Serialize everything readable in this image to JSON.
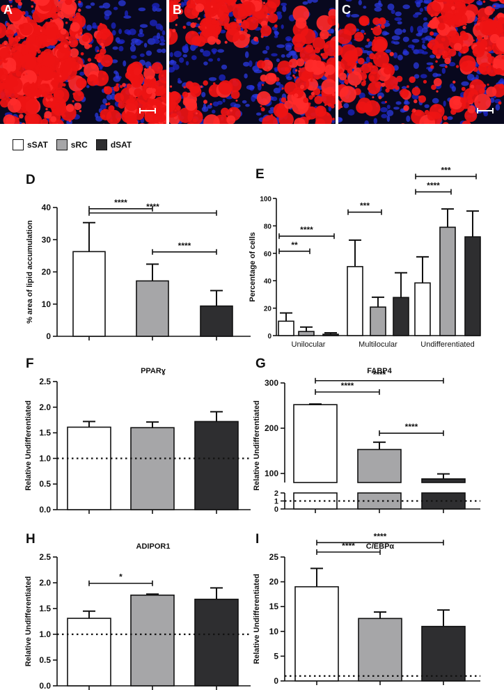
{
  "panels": {
    "A": "A",
    "B": "B",
    "C": "C",
    "D": "D",
    "E": "E",
    "F": "F",
    "G": "G",
    "H": "H",
    "I": "I"
  },
  "legend": [
    {
      "label": "sSAT",
      "color": "#ffffff"
    },
    {
      "label": "sRC",
      "color": "#a6a6a8"
    },
    {
      "label": "dSAT",
      "color": "#2e2e30"
    }
  ],
  "chart_data": [
    {
      "id": "D",
      "type": "bar",
      "categories": [
        "sSAT",
        "sRC",
        "dSAT"
      ],
      "values": [
        26.3,
        17.2,
        9.4
      ],
      "errors": [
        9.0,
        5.2,
        4.8
      ],
      "ylabel": "% area of lipid accumulation",
      "ylim": [
        0,
        40
      ],
      "yticks": [
        "0",
        "10",
        "20",
        "30",
        "40"
      ],
      "significance": [
        {
          "from": 0,
          "to": 2,
          "label": "****",
          "y": 38.3
        },
        {
          "from": 0,
          "to": 1,
          "label": "****",
          "y": 39.6
        },
        {
          "from": 1,
          "to": 2,
          "label": "****",
          "y": 26.2
        }
      ]
    },
    {
      "id": "E",
      "type": "bar",
      "categories": [
        "Unilocular",
        "Multilocular",
        "Undifferentiated"
      ],
      "series": [
        {
          "name": "sSAT",
          "values": [
            10.5,
            50.3,
            38.4
          ],
          "errors": [
            6.0,
            19.3,
            19.0
          ]
        },
        {
          "name": "sRC",
          "values": [
            3.0,
            20.8,
            79.0
          ],
          "errors": [
            3.2,
            7.2,
            13.3
          ]
        },
        {
          "name": "dSAT",
          "values": [
            1.0,
            27.8,
            72.0
          ],
          "errors": [
            1.0,
            18.0,
            18.8
          ]
        }
      ],
      "ylabel": "Percentage of cells",
      "ylim": [
        0,
        100
      ],
      "yticks": [
        "0",
        "20",
        "40",
        "60",
        "80",
        "100"
      ],
      "significance": [
        {
          "group": 0,
          "from": 0,
          "to": 2,
          "label": "****",
          "y": 72.5
        },
        {
          "group": 0,
          "from": 0,
          "to": 1,
          "label": "**",
          "y": 61.5
        },
        {
          "group": 1,
          "from": 0,
          "to": 1,
          "label": "***",
          "y": 90.0
        },
        {
          "group": 2,
          "from": 0,
          "to": 2,
          "label": "***",
          "y": 116.0
        },
        {
          "group": 2,
          "from": 0,
          "to": 1,
          "label": "****",
          "y": 104.8
        }
      ]
    },
    {
      "id": "F",
      "type": "bar",
      "title": "PPARɣ",
      "categories": [
        "sSAT",
        "sRC",
        "dSAT"
      ],
      "values": [
        1.61,
        1.6,
        1.72
      ],
      "errors": [
        0.11,
        0.11,
        0.19
      ],
      "ylabel": "Relative Undifferentiated",
      "ylim": [
        0,
        2.5
      ],
      "yticks": [
        "0.0",
        "0.5",
        "1.0",
        "1.5",
        "2.0",
        "2.5"
      ],
      "baseline": 1.0,
      "significance": []
    },
    {
      "id": "G",
      "type": "bar",
      "title": "FABP4",
      "categories": [
        "sSAT",
        "sRC",
        "dSAT"
      ],
      "values": [
        252,
        153,
        88
      ],
      "errors": [
        1.5,
        16,
        11
      ],
      "ylabel": "Relative Undifferentiated",
      "broken_axis": {
        "lower": [
          0,
          2
        ],
        "upper": [
          80,
          300
        ]
      },
      "yticks_upper": [
        "100",
        "200",
        "300"
      ],
      "yticks_lower": [
        "0",
        "1",
        "2"
      ],
      "baseline": 1.0,
      "significance": [
        {
          "from": 0,
          "to": 2,
          "label": "****",
          "y": 305
        },
        {
          "from": 0,
          "to": 1,
          "label": "****",
          "y": 280
        },
        {
          "from": 1,
          "to": 2,
          "label": "****",
          "y": 189
        }
      ]
    },
    {
      "id": "H",
      "type": "bar",
      "title": "ADIPOR1",
      "categories": [
        "sSAT",
        "sRC",
        "dSAT"
      ],
      "values": [
        1.31,
        1.76,
        1.68
      ],
      "errors": [
        0.14,
        0.02,
        0.22
      ],
      "ylabel": "Relative Undifferentiated",
      "ylim": [
        0,
        2.5
      ],
      "yticks": [
        "0.0",
        "0.5",
        "1.0",
        "1.5",
        "2.0",
        "2.5"
      ],
      "baseline": 1.0,
      "significance": [
        {
          "from": 0,
          "to": 1,
          "label": "*",
          "y": 1.99
        }
      ]
    },
    {
      "id": "I",
      "type": "bar",
      "title": "C/EBPα",
      "categories": [
        "sSAT",
        "sRC",
        "dSAT"
      ],
      "values": [
        19.0,
        12.6,
        11.0
      ],
      "errors": [
        3.7,
        1.3,
        3.3
      ],
      "ylabel": "Relative Undifferentiated",
      "ylim": [
        0,
        25
      ],
      "yticks": [
        "0",
        "5",
        "10",
        "15",
        "20",
        "25"
      ],
      "baseline": 1.0,
      "significance": [
        {
          "from": 0,
          "to": 2,
          "label": "****",
          "y": 27.9
        },
        {
          "from": 0,
          "to": 1,
          "label": "****",
          "y": 26.0
        }
      ]
    }
  ]
}
